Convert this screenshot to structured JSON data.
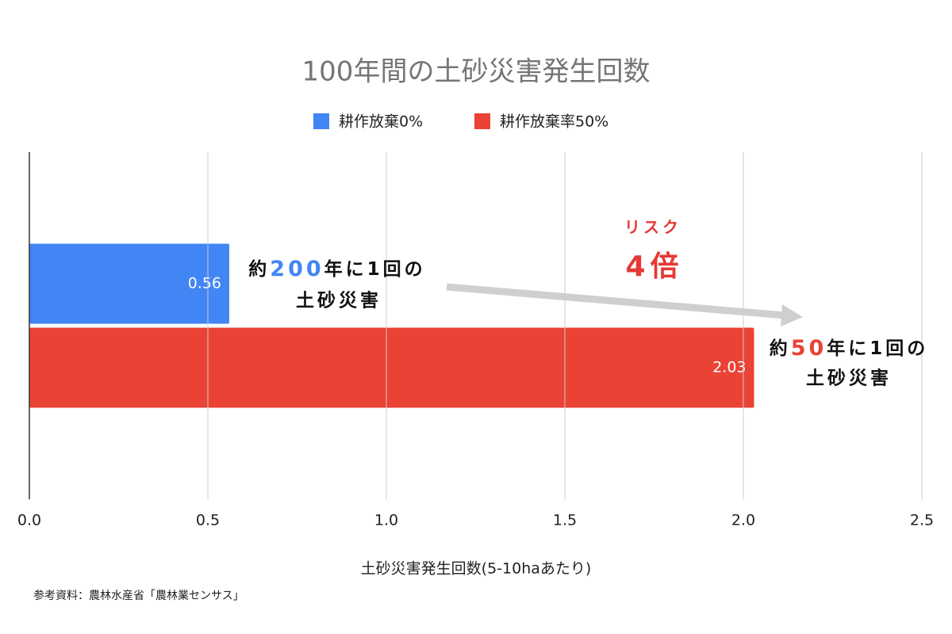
{
  "chart_data": {
    "type": "bar",
    "orientation": "horizontal",
    "title": "100年間の土砂災害発生回数",
    "categories": [
      null
    ],
    "series": [
      {
        "name": "耕作放棄0%",
        "color": "#4285f4",
        "values": [
          0.56
        ]
      },
      {
        "name": "耕作放棄率50%",
        "color": "#ea4335",
        "values": [
          2.03
        ]
      }
    ],
    "xlim": [
      0,
      2.5
    ],
    "xticks": [
      {
        "value": 0,
        "label": "0.0"
      },
      0.5,
      {
        "value": 1,
        "label": "1.0"
      },
      1.5,
      {
        "value": 2,
        "label": "2.0"
      },
      2.5
    ],
    "grid": true,
    "x_label": "土砂災害発生回数(5-10haあたり)",
    "legend": "top",
    "source": "参考資料：農林水産省「農林業センサス」",
    "annotations": {
      "blue_note": {
        "line1": [
          "約",
          "200",
          "年に1回の"
        ],
        "line2": "土砂災害"
      },
      "risk": {
        "line1": "リスク",
        "line2": "4倍"
      },
      "red_note": {
        "line1": [
          "約",
          "50",
          "年に1回の"
        ],
        "line2": "土砂災害"
      }
    }
  }
}
